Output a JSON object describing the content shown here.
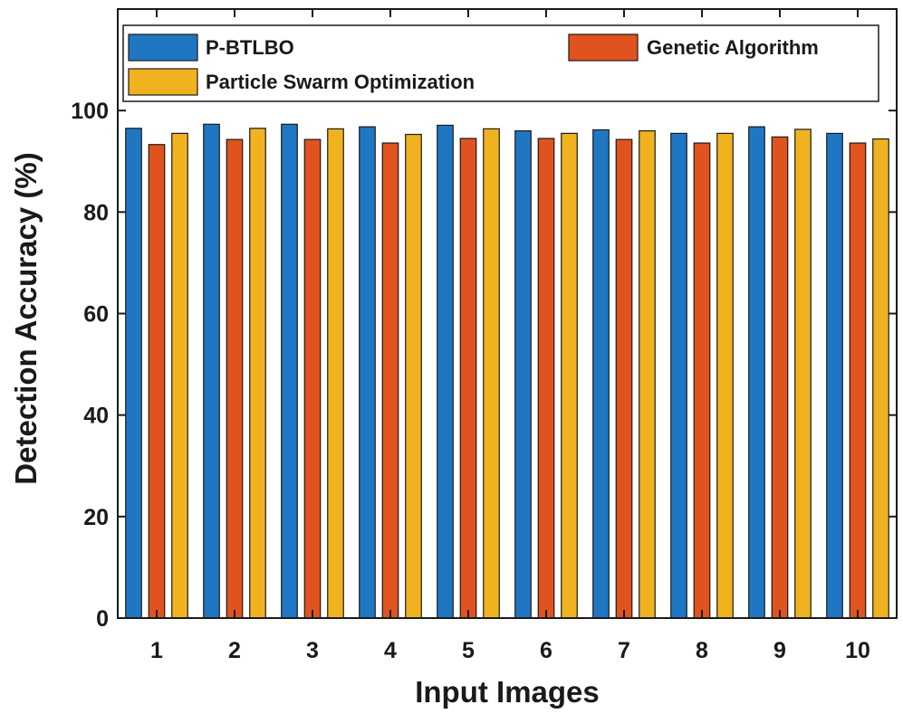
{
  "chart_data": {
    "type": "bar",
    "title": "",
    "xlabel": "Input Images",
    "ylabel": "Detection Accuracy (%)",
    "categories": [
      "1",
      "2",
      "3",
      "4",
      "5",
      "6",
      "7",
      "8",
      "9",
      "10"
    ],
    "ylim": [
      0,
      120
    ],
    "yticks": [
      0,
      20,
      40,
      60,
      80,
      100
    ],
    "grid": false,
    "legend_position": "top",
    "series": [
      {
        "name": "P-BTLBO",
        "color": "#1f77c4",
        "values": [
          96.5,
          97.3,
          97.3,
          96.8,
          97.1,
          96.0,
          96.2,
          95.5,
          96.8,
          95.5
        ]
      },
      {
        "name": "Genetic Algorithm",
        "color": "#e0531f",
        "values": [
          93.3,
          94.3,
          94.3,
          93.6,
          94.5,
          94.5,
          94.3,
          93.6,
          94.8,
          93.6
        ]
      },
      {
        "name": "Particle Swarm Optimization",
        "color": "#f0b31f",
        "values": [
          95.5,
          96.5,
          96.4,
          95.3,
          96.4,
          95.5,
          96.0,
          95.5,
          96.3,
          94.4
        ]
      }
    ]
  }
}
